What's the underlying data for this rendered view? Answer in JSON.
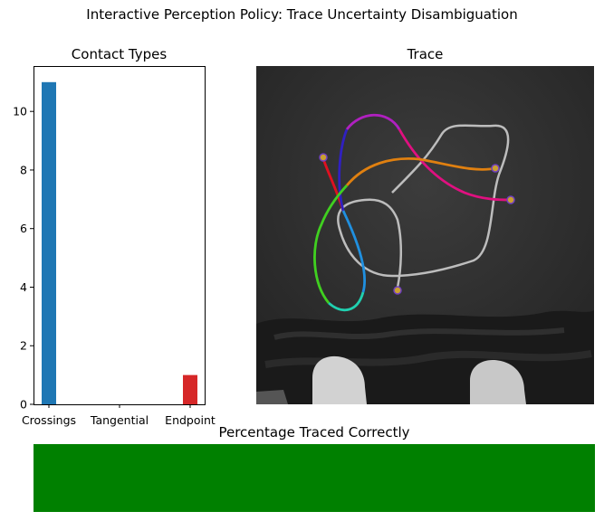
{
  "suptitle": "Interactive Perception Policy: Trace Uncertainty Disambiguation",
  "chart_data": [
    {
      "type": "bar",
      "title": "Contact Types",
      "categories": [
        "Crossings",
        "Tangential",
        "Endpoint"
      ],
      "values": [
        11,
        0,
        1
      ],
      "colors": [
        "#1f77b4",
        "#ff7f0e",
        "#d62728"
      ],
      "ylim": [
        0,
        11.55
      ],
      "yticks": [
        0,
        2,
        4,
        6,
        8,
        10
      ],
      "xlabel": "",
      "ylabel": ""
    }
  ],
  "trace_panel": {
    "title": "Trace"
  },
  "progress": {
    "title": "Percentage Traced Correctly",
    "value": 1.0,
    "color": "#008000"
  }
}
